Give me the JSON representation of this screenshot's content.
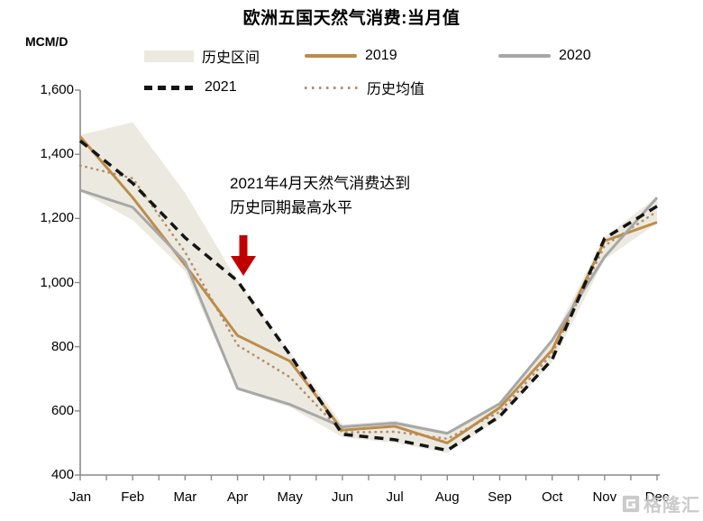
{
  "title": "欧洲五国天然气消费:当月值",
  "y_axis_unit": "MCM/D",
  "legend": {
    "items": [
      {
        "label": "历史区间",
        "type": "area",
        "color": "#ECEAE0"
      },
      {
        "label": "2019",
        "type": "line",
        "color": "#BD8C4A"
      },
      {
        "label": "2020",
        "type": "line",
        "color": "#A7A7A7"
      },
      {
        "label": "2021",
        "type": "dashed",
        "color": "#141414"
      },
      {
        "label": "历史均值",
        "type": "dotted",
        "color": "#B28F6E"
      }
    ]
  },
  "annotation": {
    "line1": "2021年4月天然气消费达到",
    "line2": "历史同期最高水平",
    "arrow_color": "#C00000"
  },
  "watermark": {
    "text": "格隆汇",
    "color": "#c7c7c7"
  },
  "chart_data": {
    "type": "line",
    "title": "欧洲五国天然气消费:当月值",
    "ylabel": "MCM/D",
    "ylim": [
      400,
      1600
    ],
    "yticks": [
      400,
      600,
      800,
      1000,
      1200,
      1400,
      1600
    ],
    "ytick_labels": [
      "400",
      "600",
      "800",
      "1,000",
      "1,200",
      "1,400",
      "1,600"
    ],
    "grid": false,
    "legend_position": "top",
    "axis_color": "#8a8a8a",
    "categories": [
      "Jan",
      "Feb",
      "Mar",
      "Apr",
      "May",
      "Jun",
      "Jul",
      "Aug",
      "Sep",
      "Oct",
      "Nov",
      "Dec"
    ],
    "band": {
      "name": "历史区间",
      "color": "#ECEAE0",
      "high": [
        1460,
        1500,
        1280,
        1005,
        782,
        558,
        570,
        535,
        630,
        825,
        1142,
        1268
      ],
      "low": [
        1285,
        1195,
        1035,
        665,
        612,
        518,
        500,
        468,
        576,
        752,
        1072,
        1185
      ]
    },
    "series": [
      {
        "name": "历史均值",
        "style": "dotted",
        "color": "#B28F6E",
        "width": 2.6,
        "values": [
          1365,
          1325,
          1095,
          805,
          705,
          533,
          535,
          513,
          597,
          778,
          1115,
          1222
        ]
      },
      {
        "name": "2019",
        "style": "solid",
        "color": "#BD8C4A",
        "width": 3,
        "values": [
          1455,
          1265,
          1055,
          835,
          755,
          540,
          552,
          500,
          610,
          790,
          1130,
          1188
        ]
      },
      {
        "name": "2020",
        "style": "solid",
        "color": "#A7A7A7",
        "width": 3,
        "values": [
          1288,
          1235,
          1065,
          670,
          620,
          550,
          562,
          530,
          622,
          820,
          1080,
          1265
        ]
      },
      {
        "name": "2021",
        "style": "dashed",
        "color": "#141414",
        "width": 3.5,
        "values": [
          1442,
          1310,
          1140,
          1005,
          775,
          527,
          510,
          477,
          583,
          760,
          1138,
          1238
        ]
      }
    ]
  }
}
